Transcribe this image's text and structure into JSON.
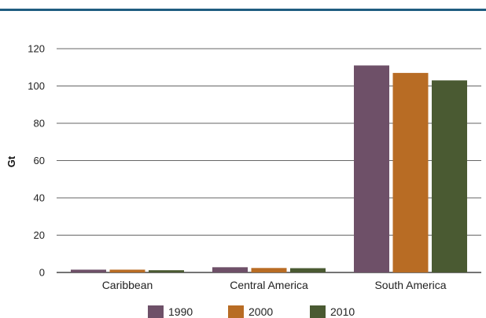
{
  "chart_data": {
    "type": "bar",
    "title": "",
    "xlabel": "",
    "ylabel": "Gt",
    "categories": [
      "Caribbean",
      "Central America",
      "South America"
    ],
    "series": [
      {
        "name": "1990",
        "values": [
          1.5,
          2.8,
          111
        ],
        "color": "#6e5068"
      },
      {
        "name": "2000",
        "values": [
          1.5,
          2.4,
          107
        ],
        "color": "#b86c24"
      },
      {
        "name": "2010",
        "values": [
          1.2,
          2.3,
          103
        ],
        "color": "#4a5a32"
      }
    ],
    "ylim": [
      0,
      120
    ],
    "yticks": [
      0,
      20,
      40,
      60,
      80,
      100,
      120
    ],
    "grid": true,
    "legend_position": "bottom-center",
    "header_rule_color": "#1f5d80"
  }
}
